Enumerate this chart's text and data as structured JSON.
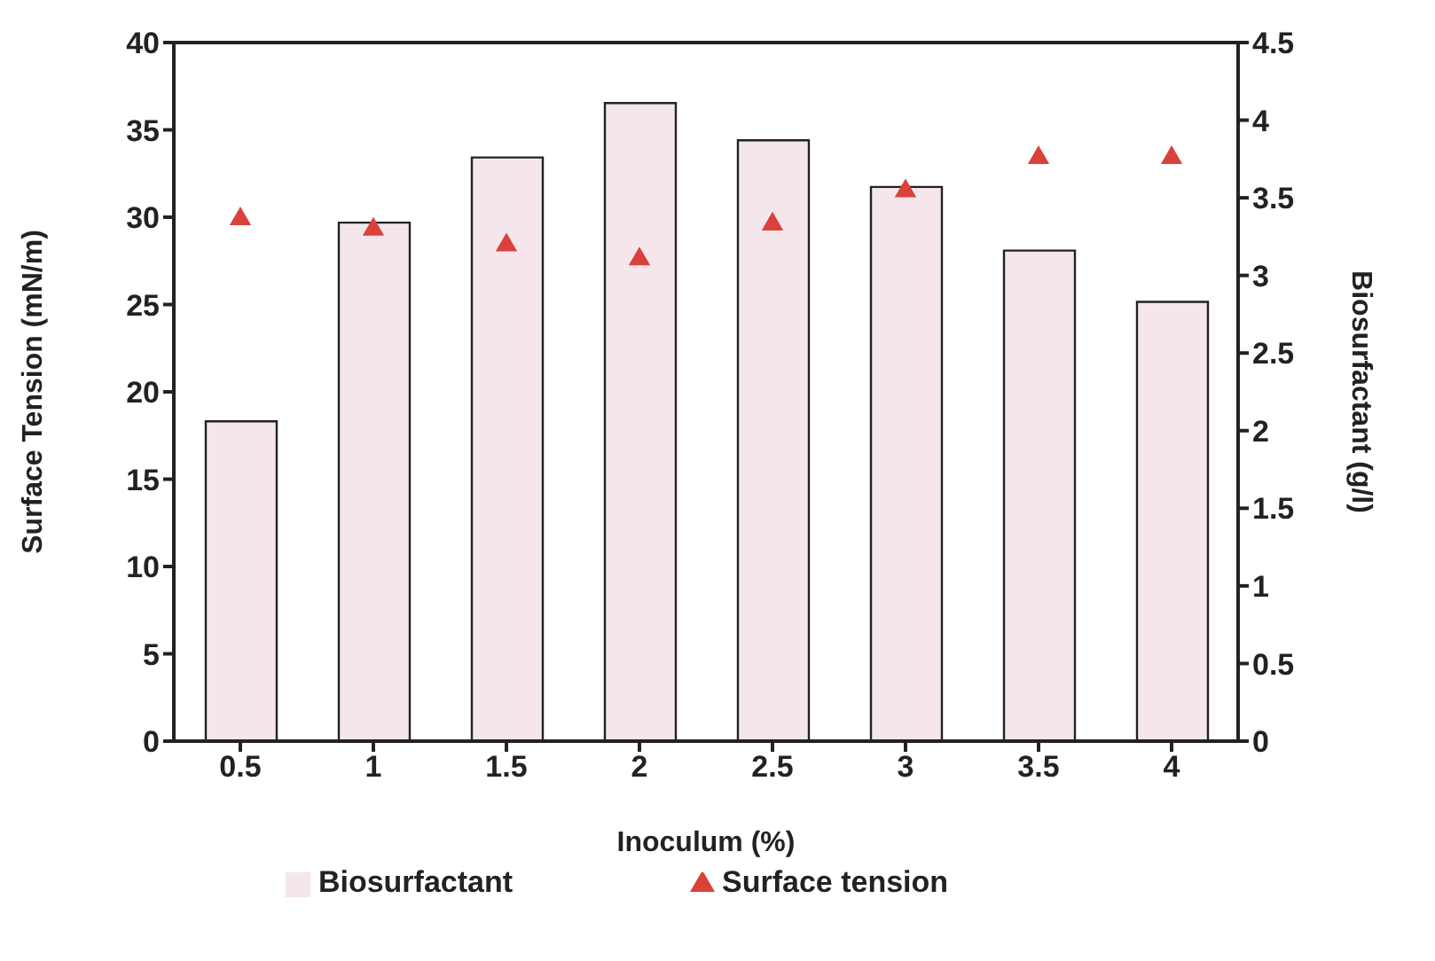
{
  "chart_data": {
    "type": "bar",
    "xlabel": "Inoculum (%)",
    "ylabel": "Surface Tension (mN/m)",
    "y2label": "Biosurfactant (g/l)",
    "categories": [
      "0.5",
      "1",
      "1.5",
      "2",
      "2.5",
      "3",
      "3.5",
      "4"
    ],
    "series": [
      {
        "name": "Biosurfactant",
        "axis": "y2",
        "color": "#f4e6ea",
        "values": [
          2.06,
          3.34,
          3.76,
          4.11,
          3.87,
          3.57,
          3.16,
          2.83
        ]
      },
      {
        "name": "Surface tension",
        "type": "scatter",
        "color": "#d9413a",
        "values": [
          29.9,
          29.3,
          28.4,
          27.6,
          29.6,
          31.5,
          33.4,
          33.4
        ]
      }
    ],
    "ylim": [
      0,
      40
    ],
    "yticks": [
      0,
      5,
      10,
      15,
      20,
      25,
      30,
      35,
      40
    ],
    "y2lim": [
      0,
      4.5
    ],
    "y2ticks": [
      0,
      0.5,
      1,
      1.5,
      2,
      2.5,
      3,
      3.5,
      4,
      4.5
    ],
    "legend": "bottom",
    "marker": "triangle",
    "grid": false
  }
}
